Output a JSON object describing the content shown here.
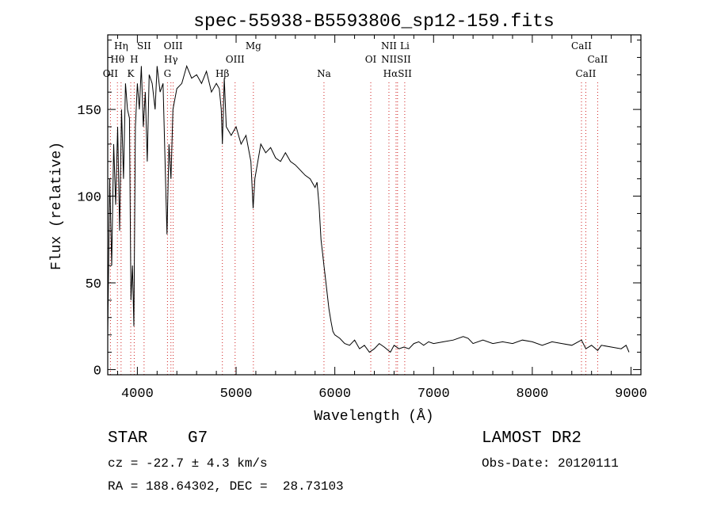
{
  "chart_data": {
    "type": "line",
    "title": "spec-55938-B5593806_sp12-159.fits",
    "xlabel": "Wavelength (Å)",
    "ylabel": "Flux (relative)",
    "xlim": [
      3700,
      9100
    ],
    "ylim": [
      -3,
      193
    ],
    "xticks": [
      4000,
      5000,
      6000,
      7000,
      8000,
      9000
    ],
    "yticks": [
      0,
      50,
      100,
      150
    ],
    "grid": false,
    "legend": "none",
    "series_points": [
      [
        3700,
        20
      ],
      [
        3720,
        110
      ],
      [
        3740,
        60
      ],
      [
        3760,
        130
      ],
      [
        3780,
        95
      ],
      [
        3800,
        140
      ],
      [
        3820,
        80
      ],
      [
        3840,
        150
      ],
      [
        3860,
        110
      ],
      [
        3880,
        165
      ],
      [
        3900,
        150
      ],
      [
        3920,
        145
      ],
      [
        3935,
        40
      ],
      [
        3950,
        60
      ],
      [
        3965,
        25
      ],
      [
        3980,
        140
      ],
      [
        4000,
        165
      ],
      [
        4020,
        150
      ],
      [
        4040,
        175
      ],
      [
        4060,
        140
      ],
      [
        4080,
        160
      ],
      [
        4100,
        120
      ],
      [
        4120,
        170
      ],
      [
        4150,
        165
      ],
      [
        4180,
        150
      ],
      [
        4200,
        175
      ],
      [
        4230,
        160
      ],
      [
        4260,
        165
      ],
      [
        4290,
        100
      ],
      [
        4300,
        78
      ],
      [
        4320,
        130
      ],
      [
        4340,
        110
      ],
      [
        4360,
        150
      ],
      [
        4400,
        162
      ],
      [
        4450,
        165
      ],
      [
        4500,
        175
      ],
      [
        4550,
        168
      ],
      [
        4600,
        170
      ],
      [
        4650,
        165
      ],
      [
        4700,
        172
      ],
      [
        4750,
        160
      ],
      [
        4800,
        165
      ],
      [
        4830,
        162
      ],
      [
        4850,
        150
      ],
      [
        4861,
        130
      ],
      [
        4880,
        168
      ],
      [
        4900,
        140
      ],
      [
        4950,
        135
      ],
      [
        5000,
        140
      ],
      [
        5050,
        130
      ],
      [
        5100,
        135
      ],
      [
        5150,
        120
      ],
      [
        5172,
        93
      ],
      [
        5190,
        110
      ],
      [
        5250,
        130
      ],
      [
        5300,
        125
      ],
      [
        5350,
        128
      ],
      [
        5400,
        122
      ],
      [
        5450,
        120
      ],
      [
        5500,
        125
      ],
      [
        5550,
        120
      ],
      [
        5600,
        118
      ],
      [
        5650,
        115
      ],
      [
        5700,
        112
      ],
      [
        5750,
        110
      ],
      [
        5800,
        105
      ],
      [
        5820,
        108
      ],
      [
        5840,
        95
      ],
      [
        5860,
        75
      ],
      [
        5880,
        65
      ],
      [
        5890,
        60
      ],
      [
        5900,
        55
      ],
      [
        5920,
        45
      ],
      [
        5940,
        35
      ],
      [
        5960,
        28
      ],
      [
        5980,
        22
      ],
      [
        6000,
        20
      ],
      [
        6050,
        18
      ],
      [
        6100,
        15
      ],
      [
        6150,
        14
      ],
      [
        6200,
        17
      ],
      [
        6250,
        12
      ],
      [
        6300,
        14
      ],
      [
        6350,
        10
      ],
      [
        6400,
        12
      ],
      [
        6450,
        15
      ],
      [
        6500,
        13
      ],
      [
        6563,
        10
      ],
      [
        6600,
        14
      ],
      [
        6650,
        12
      ],
      [
        6700,
        13
      ],
      [
        6750,
        12
      ],
      [
        6800,
        15
      ],
      [
        6850,
        16
      ],
      [
        6900,
        14
      ],
      [
        6950,
        16
      ],
      [
        7000,
        15
      ],
      [
        7100,
        16
      ],
      [
        7200,
        17
      ],
      [
        7300,
        19
      ],
      [
        7350,
        18
      ],
      [
        7400,
        15
      ],
      [
        7500,
        17
      ],
      [
        7600,
        15
      ],
      [
        7700,
        16
      ],
      [
        7800,
        15
      ],
      [
        7900,
        17
      ],
      [
        8000,
        16
      ],
      [
        8100,
        14
      ],
      [
        8200,
        16
      ],
      [
        8300,
        15
      ],
      [
        8400,
        14
      ],
      [
        8498,
        17
      ],
      [
        8542,
        12
      ],
      [
        8600,
        14
      ],
      [
        8662,
        11
      ],
      [
        8700,
        14
      ],
      [
        8800,
        13
      ],
      [
        8900,
        12
      ],
      [
        8950,
        14
      ],
      [
        8980,
        10
      ]
    ],
    "line_markers": [
      {
        "label": "Hη",
        "x": 3835,
        "row": 0
      },
      {
        "label": "SII",
        "x": 4068,
        "row": 0
      },
      {
        "label": "OIII",
        "x": 4363,
        "row": 0
      },
      {
        "label": "Mg",
        "x": 5175,
        "row": 0
      },
      {
        "label": "NII",
        "x": 6548,
        "row": 0
      },
      {
        "label": "Li",
        "x": 6708,
        "row": 0
      },
      {
        "label": "CaII",
        "x": 8498,
        "row": 0
      },
      {
        "label": "Hθ",
        "x": 3798,
        "row": 1
      },
      {
        "label": "H",
        "x": 3968,
        "row": 1
      },
      {
        "label": "Hγ",
        "x": 4340,
        "row": 1
      },
      {
        "label": "OIII",
        "x": 4990,
        "row": 1
      },
      {
        "label": "OI",
        "x": 6364,
        "row": 1
      },
      {
        "label": "NIISII",
        "x": 6620,
        "row": 1
      },
      {
        "label": "CaII",
        "x": 8662,
        "row": 1
      },
      {
        "label": "OII",
        "x": 3727,
        "row": 2
      },
      {
        "label": "K",
        "x": 3933,
        "row": 2
      },
      {
        "label": "G",
        "x": 4305,
        "row": 2
      },
      {
        "label": "Hβ",
        "x": 4861,
        "row": 2
      },
      {
        "label": "Na",
        "x": 5890,
        "row": 2
      },
      {
        "label": "HαSII",
        "x": 6635,
        "row": 2
      },
      {
        "label": "CaII",
        "x": 8542,
        "row": 2
      }
    ]
  },
  "info": {
    "object_class": "STAR",
    "subclass": "G7",
    "survey": "LAMOST DR2",
    "redshift": "cz = -22.7 ± 4.3 km/s",
    "obs_date": "Obs-Date: 20120111",
    "coords": "RA = 188.64302, DEC =  28.73103"
  }
}
